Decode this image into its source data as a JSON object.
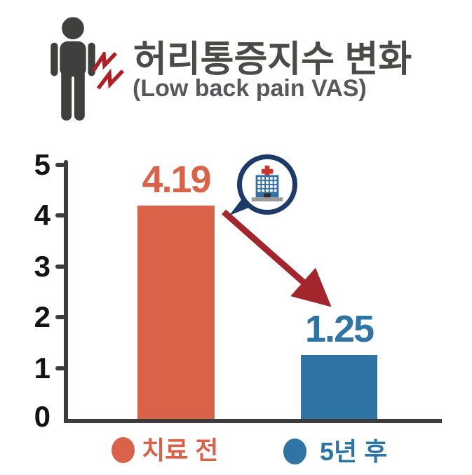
{
  "header": {
    "title": "허리통증지수 변화",
    "subtitle": "(Low back pain VAS)"
  },
  "chart_data": {
    "type": "bar",
    "title": "허리통증지수 변화 (Low back pain VAS)",
    "categories": [
      "치료 전",
      "5년 후"
    ],
    "values": [
      4.19,
      1.25
    ],
    "value_labels": [
      "4.19",
      "1.25"
    ],
    "bar_colors": [
      "#d96248",
      "#2e74a4"
    ],
    "ylim": [
      0,
      5
    ],
    "yticks": [
      0,
      1,
      2,
      3,
      4,
      5
    ],
    "xlabel": "",
    "ylabel": "",
    "grid": false,
    "legend_position": "bottom",
    "annotations": [
      "hospital-icon speech bubble at top of first bar",
      "dark red arrow from first bar down to second bar value (decrease)"
    ]
  },
  "colors": {
    "accent_orange": "#d96248",
    "accent_blue": "#2e74a4",
    "arrow_red": "#a3262c",
    "bolt_red": "#b01f24",
    "navy_ring": "#1d3a69",
    "axis_dark": "#3c3c3c",
    "title_gray": "#4a4a47",
    "subtitle_gray": "#57585c"
  },
  "icons": {
    "person": "person-pictogram",
    "pain": "lightning-pain-marks",
    "hospital": "hospital-building"
  }
}
